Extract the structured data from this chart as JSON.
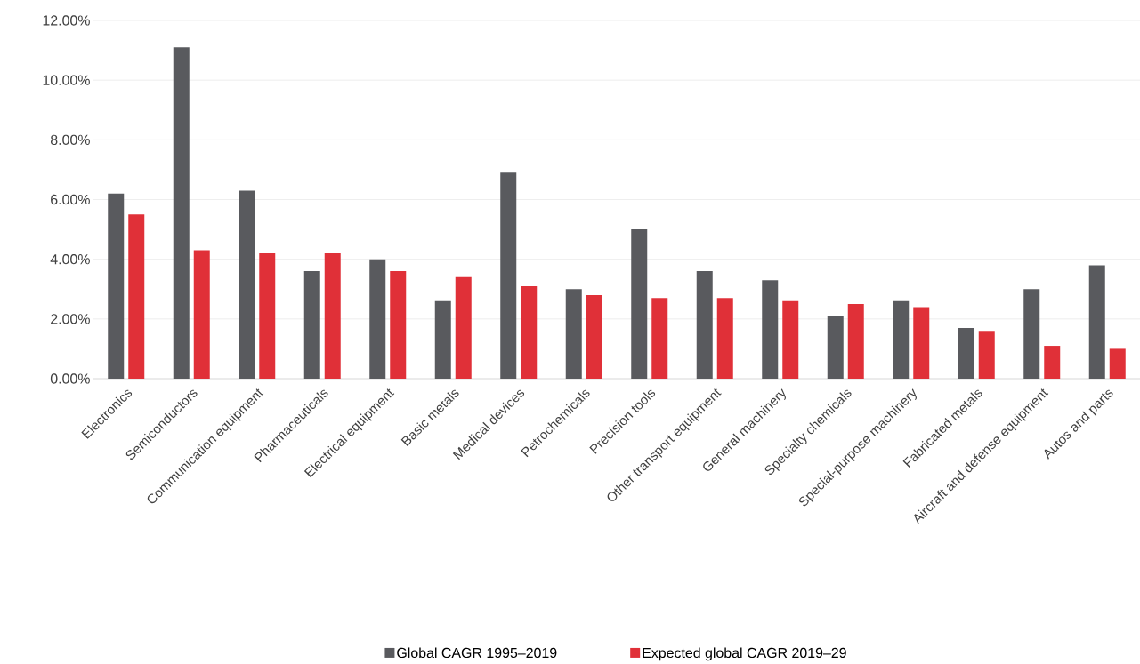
{
  "chart_data": {
    "type": "bar",
    "categories": [
      "Electronics",
      "Semiconductors",
      "Communication equipment",
      "Pharmaceuticals",
      "Electrical equipment",
      "Basic metals",
      "Medical devices",
      "Petrochemicals",
      "Precision tools",
      "Other transport equipment",
      "General machinery",
      "Specialty chemicals",
      "Special-purpose machinery",
      "Fabricated metals",
      "Aircraft and defense equipment",
      "Autos and parts"
    ],
    "series": [
      {
        "name": "Global CAGR 1995–2019",
        "color": "#595a5e",
        "values": [
          6.2,
          11.1,
          6.3,
          3.6,
          4.0,
          2.6,
          6.9,
          3.0,
          5.0,
          3.6,
          3.3,
          2.1,
          2.6,
          1.7,
          3.0,
          3.8
        ]
      },
      {
        "name": "Expected global CAGR 2019–29",
        "color": "#e03038",
        "values": [
          5.5,
          4.3,
          4.2,
          4.2,
          3.6,
          3.4,
          3.1,
          2.8,
          2.7,
          2.7,
          2.6,
          2.5,
          2.4,
          1.6,
          1.1,
          1.0
        ]
      }
    ],
    "ylim": [
      0,
      12
    ],
    "yticks": [
      {
        "value": 0,
        "label": "0.00%"
      },
      {
        "value": 2,
        "label": "2.00%"
      },
      {
        "value": 4,
        "label": "4.00%"
      },
      {
        "value": 6,
        "label": "6.00%"
      },
      {
        "value": 8,
        "label": "8.00%"
      },
      {
        "value": 10,
        "label": "10.00%"
      },
      {
        "value": 12,
        "label": "12.00%"
      }
    ],
    "grid": "y",
    "legend": "bottom"
  }
}
